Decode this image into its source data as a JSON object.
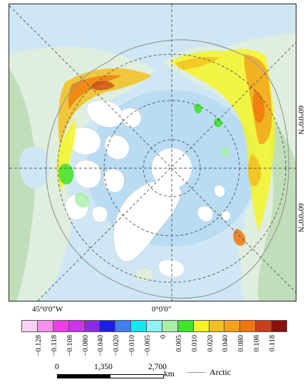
{
  "map": {
    "lat_labels": [
      "60°0'0\"N",
      "60°0'0\"N"
    ],
    "lon_labels": [
      "45°0'0\"W",
      "0°0'0\""
    ],
    "colors": {
      "ocean": "#cfe7f5",
      "ocean_deep": "#b9dcf2",
      "land": "#dfeede",
      "land_green": "#b9d9b0",
      "ice": "#ffffff",
      "graticule": "#555555",
      "arctic_boundary": "#999999"
    }
  },
  "legend": {
    "values": [
      "-0.128",
      "-0.118",
      "-0.108",
      "-0.080",
      "-0.040",
      "-0.020",
      "-0.010",
      "-0.005",
      "0",
      "0.005",
      "0.010",
      "0.020",
      "0.040",
      "0.080",
      "0.108",
      "0.118"
    ],
    "colors": [
      "#fdd0f4",
      "#f68ff0",
      "#ef3ee6",
      "#cc33ee",
      "#8a2be2",
      "#1b1ee8",
      "#3f7ff0",
      "#13e8f0",
      "#8df2ef",
      "#a7eea6",
      "#3fe32a",
      "#f5f51c",
      "#f3c01d",
      "#f3a01a",
      "#f0750c",
      "#c8401a",
      "#8b1010"
    ]
  },
  "scale": {
    "labels": [
      "0",
      "1,350",
      "2,700"
    ],
    "unit": "km"
  },
  "boundary_legend": {
    "label": "Arctic"
  }
}
